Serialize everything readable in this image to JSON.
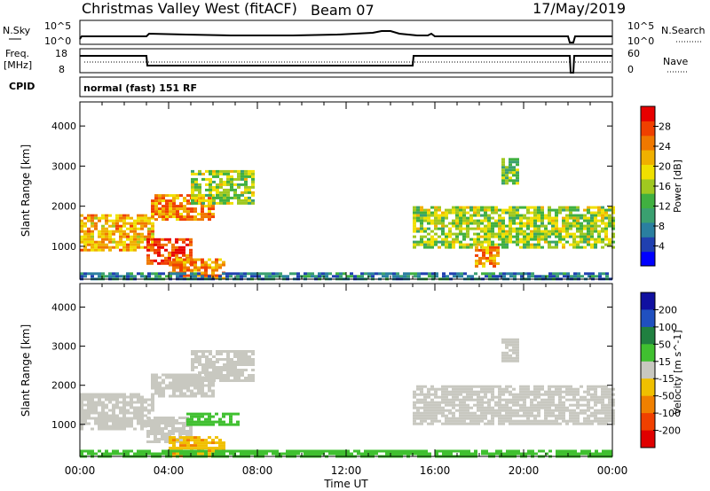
{
  "header": {
    "station": "Christmas Valley West (fitACF)",
    "beam": "Beam 07",
    "date": "17/May/2019"
  },
  "status_panels": {
    "nsky_label": "N.Sky",
    "nsky_ticks": [
      "10^5",
      "10^0"
    ],
    "nsearch_label": "N.Search",
    "nsearch_ticks": [
      "10^5",
      "10^0"
    ],
    "freq_label": "Freq.",
    "freq_unit": "[MHz]",
    "freq_ticks": [
      "18",
      "8"
    ],
    "nave_label": "Nave",
    "nave_ticks": [
      "60",
      "0"
    ],
    "cpid_label": "CPID",
    "cpid_value": "normal (fast) 151 RF"
  },
  "chart_data": [
    {
      "type": "heatmap",
      "name": "Power",
      "ylabel": "Slant Range [km]",
      "xlabel": "Time UT",
      "x_ticks": [
        "00:00",
        "04:00",
        "08:00",
        "12:00",
        "16:00",
        "20:00",
        "00:00"
      ],
      "x_range_hours": [
        0,
        24
      ],
      "y_ticks": [
        1000,
        2000,
        3000,
        4000
      ],
      "ylim": [
        180,
        4600
      ],
      "colorbar": {
        "label": "Power [dB]",
        "ticks": [
          4,
          8,
          12,
          16,
          20,
          24,
          28
        ],
        "range": [
          0,
          32
        ],
        "colors": [
          "#0000ff",
          "#2040b0",
          "#2a7fa0",
          "#3aa070",
          "#40b040",
          "#a0c820",
          "#f0e000",
          "#f0b000",
          "#f07800",
          "#f04000",
          "#e80000"
        ]
      },
      "regions": [
        {
          "t0": 0.0,
          "t1": 3.3,
          "r0": 900,
          "r1": 1800,
          "level": 22
        },
        {
          "t0": 3.0,
          "t1": 5.0,
          "r0": 550,
          "r1": 1200,
          "level": 28
        },
        {
          "t0": 3.2,
          "t1": 6.0,
          "r0": 1700,
          "r1": 2300,
          "level": 24
        },
        {
          "t0": 5.0,
          "t1": 7.8,
          "r0": 2100,
          "r1": 2900,
          "level": 16
        },
        {
          "t0": 4.0,
          "t1": 6.5,
          "r0": 200,
          "r1": 700,
          "level": 24
        },
        {
          "t0": 15.0,
          "t1": 24.0,
          "r0": 1000,
          "r1": 2000,
          "level": 16
        },
        {
          "t0": 17.8,
          "t1": 18.8,
          "r0": 500,
          "r1": 1000,
          "level": 24
        },
        {
          "t0": 19.0,
          "t1": 19.8,
          "r0": 2600,
          "r1": 3200,
          "level": 14
        },
        {
          "t0": 0.0,
          "t1": 24.0,
          "r0": 180,
          "r1": 350,
          "level": 8
        }
      ]
    },
    {
      "type": "heatmap",
      "name": "Velocity",
      "ylabel": "Slant Range [km]",
      "xlabel": "Time UT",
      "x_ticks": [
        "00:00",
        "04:00",
        "08:00",
        "12:00",
        "16:00",
        "20:00",
        "00:00"
      ],
      "x_range_hours": [
        0,
        24
      ],
      "y_ticks": [
        1000,
        2000,
        3000,
        4000
      ],
      "ylim": [
        180,
        4600
      ],
      "colorbar": {
        "label": "Velocity [m s^-1]",
        "ticks": [
          200,
          100,
          50,
          15,
          -15,
          -50,
          -100,
          -200
        ],
        "colors": [
          "#1010a0",
          "#2050c0",
          "#208040",
          "#40c030",
          "#c8c8c0",
          "#f0c000",
          "#f08000",
          "#f04000",
          "#e00000"
        ]
      },
      "regions": [
        {
          "t0": 0.0,
          "t1": 3.3,
          "r0": 900,
          "r1": 1800,
          "level": 0
        },
        {
          "t0": 3.0,
          "t1": 5.0,
          "r0": 550,
          "r1": 1200,
          "level": 0
        },
        {
          "t0": 3.2,
          "t1": 6.0,
          "r0": 1700,
          "r1": 2300,
          "level": 0
        },
        {
          "t0": 5.0,
          "t1": 7.8,
          "r0": 2100,
          "r1": 2900,
          "level": 0
        },
        {
          "t0": 4.8,
          "t1": 7.2,
          "r0": 1000,
          "r1": 1300,
          "level": 30
        },
        {
          "t0": 4.0,
          "t1": 6.5,
          "r0": 200,
          "r1": 700,
          "level": -40
        },
        {
          "t0": 15.0,
          "t1": 24.0,
          "r0": 1000,
          "r1": 2000,
          "level": 0
        },
        {
          "t0": 19.0,
          "t1": 19.8,
          "r0": 2600,
          "r1": 3200,
          "level": 0
        },
        {
          "t0": 0.0,
          "t1": 24.0,
          "r0": 180,
          "r1": 350,
          "level": 30
        }
      ]
    }
  ]
}
